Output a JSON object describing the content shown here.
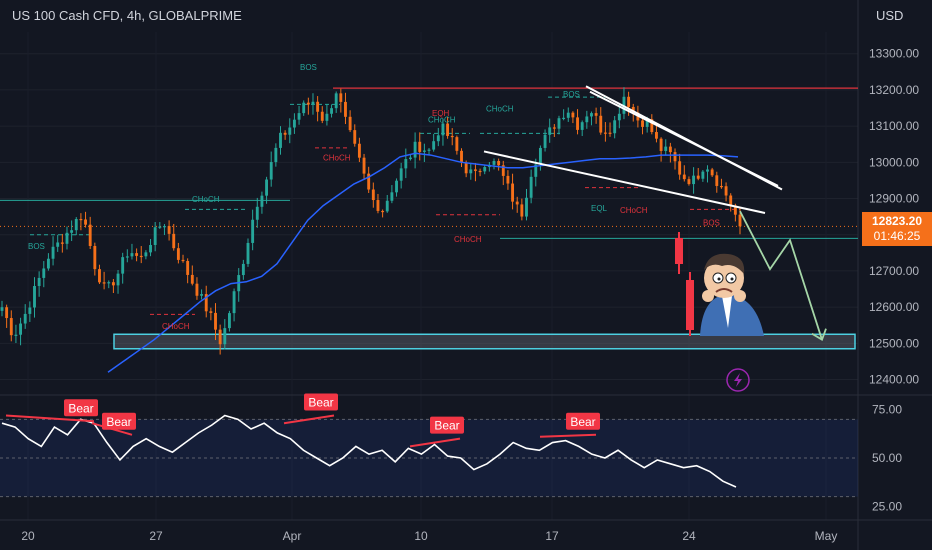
{
  "header": {
    "title": "US 100 Cash CFD, 4h, GLOBALPRIME",
    "currency": "USD"
  },
  "price_tag": {
    "price": "12823.20",
    "countdown": "01:46:25"
  },
  "colors": {
    "background": "#131722",
    "bull": "#26a69a",
    "bear": "#f5701a",
    "ma": "#2962ff",
    "resistance": "#e0333c",
    "zone": "#4dd0e1",
    "arrow": "#a5d6a7",
    "rsi": "#ffffff",
    "bear_label": "#f23645"
  },
  "icons": {
    "cartoon": "stressed-trader-icon",
    "lightning": "lightning-bolt-icon"
  },
  "chart_data": [
    {
      "type": "candlestick",
      "title": "US 100 Cash CFD, 4h, GLOBALPRIME",
      "ylabel": "USD",
      "ylim": [
        12360,
        13360
      ],
      "y_ticks": [
        12400,
        12500,
        12600,
        12700,
        12800,
        12900,
        13000,
        13100,
        13200,
        13300
      ],
      "y_tick_labels": [
        "12400.00",
        "12500.00",
        "12600.00",
        "12700.00",
        "12800.00",
        "12900.00",
        "13000.00",
        "13100.00",
        "13200.00",
        "13300.00"
      ],
      "x_tick_labels": [
        "20",
        "27",
        "Apr",
        "10",
        "17",
        "24",
        "May"
      ],
      "last_price": 12823.2,
      "series": [
        {
          "name": "price",
          "close_path": [
            12600,
            12520,
            12580,
            12660,
            12740,
            12780,
            12820,
            12860,
            12720,
            12640,
            12690,
            12760,
            12730,
            12790,
            12840,
            12760,
            12700,
            12640,
            12580,
            12500,
            12620,
            12740,
            12880,
            12960,
            13060,
            13100,
            13150,
            13170,
            13110,
            13200,
            13090,
            13000,
            12900,
            12870,
            12940,
            13000,
            13050,
            13030,
            13100,
            13060,
            12990,
            12960,
            13010,
            12990,
            12920,
            12850,
            12990,
            13060,
            13110,
            13150,
            13100,
            13150,
            13090,
            13100,
            13190,
            13120,
            13110,
            13040,
            13020,
            12960,
            12950,
            13000,
            12950,
            12900,
            12823
          ]
        },
        {
          "name": "moving average",
          "values": [
            12420,
            12450,
            12480,
            12510,
            12545,
            12580,
            12615,
            12645,
            12665,
            12670,
            12685,
            12720,
            12780,
            12840,
            12880,
            12910,
            12940,
            12960,
            12985,
            13015,
            13025,
            13020,
            13010,
            13000,
            12995,
            12990,
            12985,
            12985,
            12990,
            12995,
            13000,
            13005,
            13010,
            13010,
            13012,
            13015,
            13020,
            13020,
            13020,
            13020,
            13018,
            13015
          ]
        }
      ],
      "annotations": [
        "BOS",
        "CHoCH",
        "EQH",
        "EQL"
      ],
      "levels": {
        "resistance": 13205,
        "support_zone": [
          12485,
          12525
        ]
      }
    },
    {
      "type": "line",
      "name": "RSI",
      "ylim": [
        20,
        80
      ],
      "y_ticks": [
        25,
        50,
        75
      ],
      "y_tick_labels": [
        "25.00",
        "50.00",
        "75.00"
      ],
      "bands": [
        30,
        70
      ],
      "values": [
        68,
        66,
        60,
        56,
        66,
        62,
        70,
        68,
        58,
        49,
        56,
        60,
        56,
        53,
        58,
        63,
        67,
        72,
        70,
        65,
        68,
        63,
        60,
        54,
        50,
        46,
        50,
        56,
        52,
        54,
        48,
        55,
        52,
        57,
        51,
        50,
        44,
        47,
        52,
        58,
        55,
        54,
        58,
        59,
        56,
        52,
        50,
        54,
        49,
        45,
        49,
        47,
        45,
        46,
        43,
        38,
        35
      ],
      "divergence_label": "Bear",
      "divergences": [
        {
          "rsi_from": 72,
          "rsi_to": 69,
          "price_from": 12870,
          "price_to": 12830
        },
        {
          "rsi_from": 68,
          "rsi_to": 62,
          "price_from": 12820,
          "price_to": 12860
        },
        {
          "rsi_from": 68,
          "rsi_to": 72,
          "price_from": 13170,
          "price_to": 13205
        },
        {
          "rsi_from": 56,
          "rsi_to": 60,
          "price_from": 13100,
          "price_to": 13130
        },
        {
          "rsi_from": 61,
          "rsi_to": 62,
          "price_from": 13150,
          "price_to": 13190
        }
      ]
    }
  ]
}
